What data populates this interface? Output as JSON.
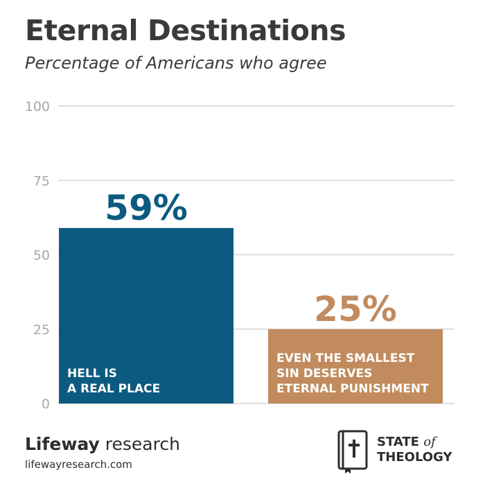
{
  "chart_data": {
    "type": "bar",
    "title": "Eternal Destinations",
    "subtitle": "Percentage of Americans who agree",
    "categories": [
      [
        "HELL IS",
        "A REAL PLACE"
      ],
      [
        "EVEN THE SMALLEST",
        "SIN DESERVES",
        "ETERNAL PUNISHMENT"
      ]
    ],
    "values": [
      59,
      25
    ],
    "value_labels": [
      "59%",
      "25%"
    ],
    "colors": [
      "#0c5a80",
      "#c18b5e"
    ],
    "ylim": [
      0,
      100
    ],
    "yticks": [
      0,
      25,
      50,
      75,
      100
    ],
    "grid": true
  },
  "footer": {
    "brand_bold": "Lifeway",
    "brand_light": " research",
    "url": "lifewayresearch.com",
    "sot_line1": "STATE",
    "sot_of": "of",
    "sot_line2": "THEOLOGY"
  }
}
